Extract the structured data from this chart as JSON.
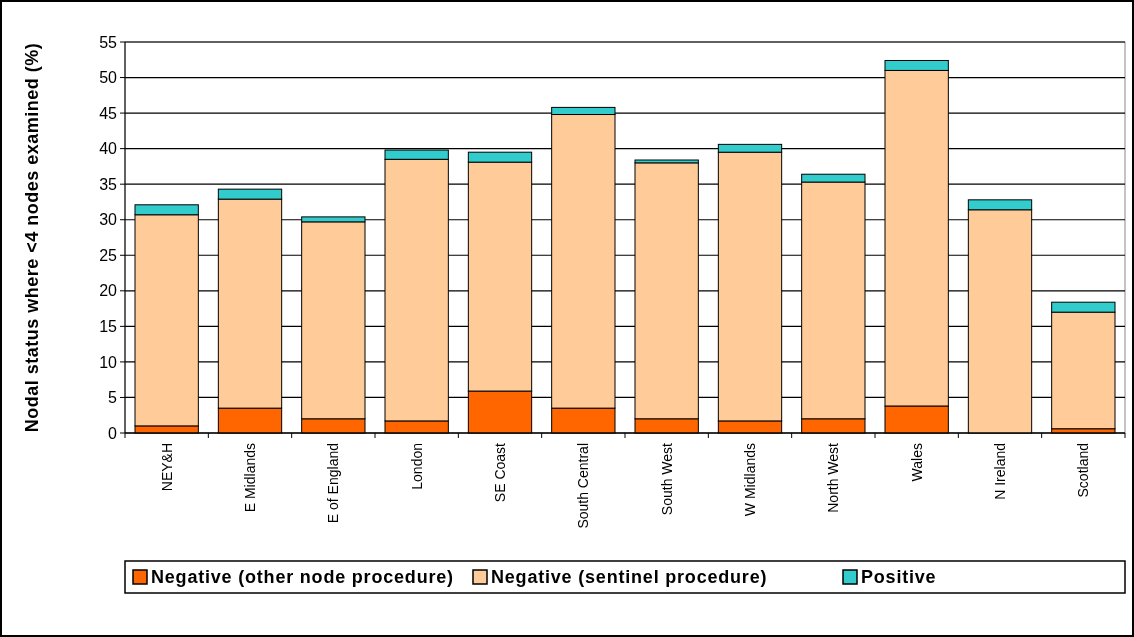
{
  "chart_data": {
    "type": "bar",
    "stacked": true,
    "ylabel": "Nodal status where <4 nodes examined (%)",
    "categories": [
      "NEY&H",
      "E Midlands",
      "E of England",
      "London",
      "SE Coast",
      "South Central",
      "South West",
      "W Midlands",
      "North West",
      "Wales",
      "N Ireland",
      "Scotland"
    ],
    "series": [
      {
        "name": "Negative (other node procedure)",
        "color": "#ff6600",
        "values": [
          1.0,
          3.5,
          2.0,
          1.7,
          5.9,
          3.5,
          2.0,
          1.7,
          2.0,
          3.8,
          0,
          0.6
        ]
      },
      {
        "name": "Negative (sentinel procedure)",
        "color": "#ffcc99",
        "values": [
          29.7,
          29.4,
          27.7,
          36.8,
          32.2,
          41.3,
          36.0,
          37.8,
          33.3,
          47.2,
          31.4,
          16.4
        ]
      },
      {
        "name": "Positive",
        "color": "#33cccc",
        "values": [
          1.4,
          1.4,
          0.7,
          1.3,
          1.4,
          1.0,
          0.4,
          1.1,
          1.1,
          1.4,
          1.4,
          1.4
        ]
      }
    ],
    "ylim": [
      0,
      55
    ],
    "yticks": [
      0,
      5,
      10,
      15,
      20,
      25,
      30,
      35,
      40,
      45,
      50,
      55
    ],
    "grid": "y",
    "legend": "bottom"
  }
}
